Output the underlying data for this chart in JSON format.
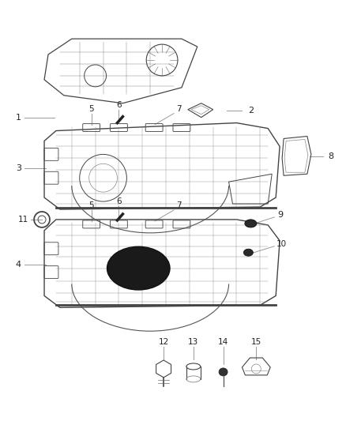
{
  "bg_color": "#ffffff",
  "line_color": "#555555",
  "label_color": "#222222",
  "edge_color": "#444444",
  "inner_color": "#888888",
  "label_line_color": "#999999"
}
